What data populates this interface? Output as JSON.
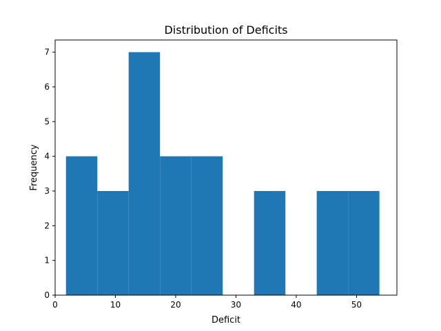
{
  "chart_data": {
    "type": "histogram",
    "title": "Distribution of Deficits",
    "xlabel": "Deficit",
    "ylabel": "Frequency",
    "xlim": [
      0.0,
      56.7
    ],
    "ylim": [
      0,
      7.35
    ],
    "xticks": [
      0,
      10,
      20,
      30,
      40,
      50
    ],
    "yticks": [
      0,
      1,
      2,
      3,
      4,
      5,
      6,
      7
    ],
    "bin_width": 5.2,
    "bins": [
      {
        "x0": 1.8,
        "x1": 7.0,
        "count": 4
      },
      {
        "x0": 7.0,
        "x1": 12.2,
        "count": 3
      },
      {
        "x0": 12.2,
        "x1": 17.4,
        "count": 7
      },
      {
        "x0": 17.4,
        "x1": 22.6,
        "count": 4
      },
      {
        "x0": 22.6,
        "x1": 27.8,
        "count": 4
      },
      {
        "x0": 27.8,
        "x1": 33.0,
        "count": 0
      },
      {
        "x0": 33.0,
        "x1": 38.2,
        "count": 3
      },
      {
        "x0": 38.2,
        "x1": 43.4,
        "count": 0
      },
      {
        "x0": 43.4,
        "x1": 48.6,
        "count": 3
      },
      {
        "x0": 48.6,
        "x1": 53.8,
        "count": 3
      }
    ],
    "bar_color": "#1f77b4",
    "grid": false,
    "legend": "none"
  }
}
